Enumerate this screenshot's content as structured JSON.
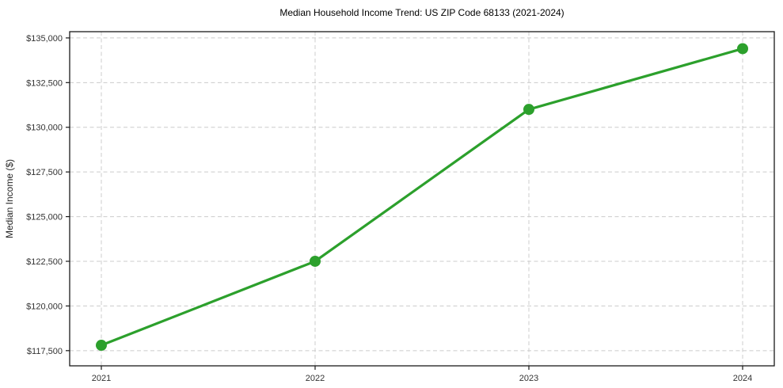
{
  "chart_data": {
    "type": "line",
    "title": "Median Household Income Trend: US ZIP Code 68133 (2021-2024)",
    "xlabel": "",
    "ylabel": "Median Income ($)",
    "categories": [
      "2021",
      "2022",
      "2023",
      "2024"
    ],
    "series": [
      {
        "name": "Median Household Income",
        "values": [
          117800,
          122500,
          131000,
          134400
        ]
      }
    ],
    "y_ticks": {
      "values": [
        117500,
        120000,
        122500,
        125000,
        127500,
        130000,
        132500,
        135000
      ],
      "labels": [
        "$117,500",
        "$120,000",
        "$122,500",
        "$125,000",
        "$127,500",
        "$130,000",
        "$132,500",
        "$135,000"
      ]
    },
    "ylim": [
      116650,
      135350
    ],
    "grid": "dashed both horizontal and vertical",
    "legend": "none",
    "marker": "filled circle",
    "colors": {
      "line": "#2ca02c",
      "marker": "#2ca02c",
      "grid": "#cccccc",
      "axis_border": "#1a1a1a",
      "tick_text": "#333333",
      "background": "#ffffff"
    }
  }
}
